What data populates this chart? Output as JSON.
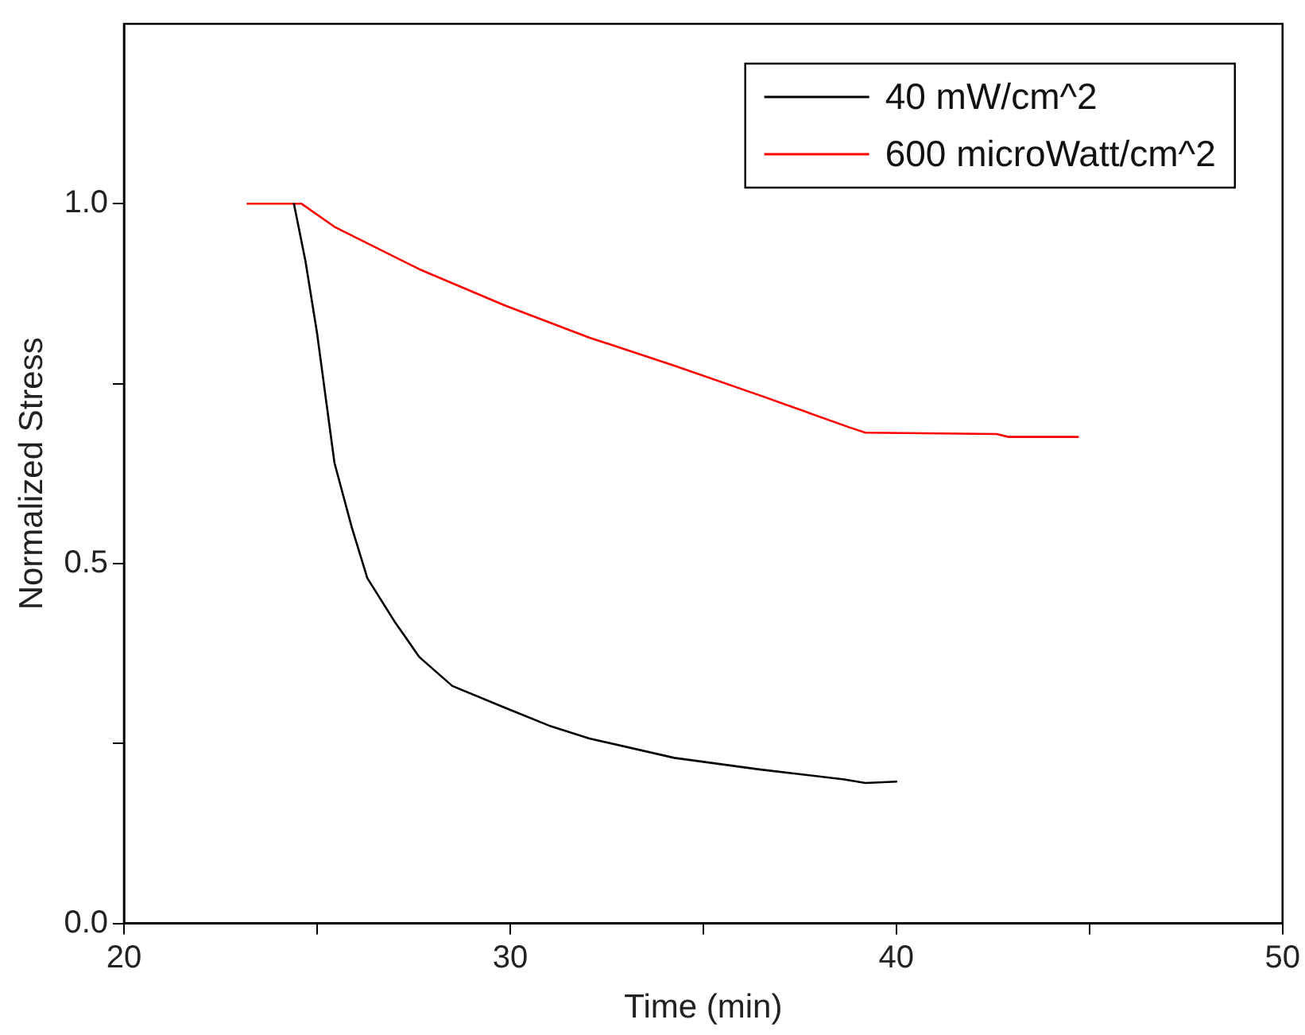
{
  "chart_data": {
    "type": "line",
    "xlabel": "Time (min)",
    "ylabel": "Normalized Stress",
    "xlim": [
      20,
      50
    ],
    "xticks": [
      20,
      {
        "value": 25,
        "label": null
      },
      30,
      {
        "value": 35,
        "label": null
      },
      40,
      {
        "value": 45,
        "label": null
      },
      50
    ],
    "ylim": [
      0,
      1.25
    ],
    "yticks": [
      {
        "value": 0,
        "label": "0.0"
      },
      {
        "value": 0.25,
        "label": null
      },
      {
        "value": 0.5,
        "label": "0.5"
      },
      {
        "value": 0.75,
        "label": null
      },
      {
        "value": 1,
        "label": "1.0"
      }
    ],
    "grid": false,
    "legend": "top right",
    "marker": "none",
    "line_style": "solid",
    "series": [
      {
        "name": "40 mW/cm^2",
        "color": "#000000",
        "x": [
          24.4,
          24.7,
          25.0,
          25.45,
          25.9,
          26.3,
          27.0,
          27.65,
          28.5,
          29.85,
          31,
          32.05,
          34.25,
          36.45,
          38.65,
          39.2,
          40
        ],
        "values": [
          1.0,
          0.92,
          0.82,
          0.64,
          0.55,
          0.48,
          0.42,
          0.37,
          0.33,
          0.3,
          0.275,
          0.257,
          0.23,
          0.214,
          0.2,
          0.195,
          0.197
        ]
      },
      {
        "name": "600 microWatt/cm^2",
        "color": "#ff0000",
        "x": [
          23.2,
          24.6,
          25.45,
          27.65,
          29.85,
          32.05,
          34.25,
          36.45,
          38.8,
          39.2,
          42.6,
          42.9,
          44.7
        ],
        "values": [
          1.0,
          1.0,
          0.968,
          0.909,
          0.859,
          0.814,
          0.775,
          0.734,
          0.689,
          0.682,
          0.68,
          0.676,
          0.676
        ]
      }
    ]
  }
}
